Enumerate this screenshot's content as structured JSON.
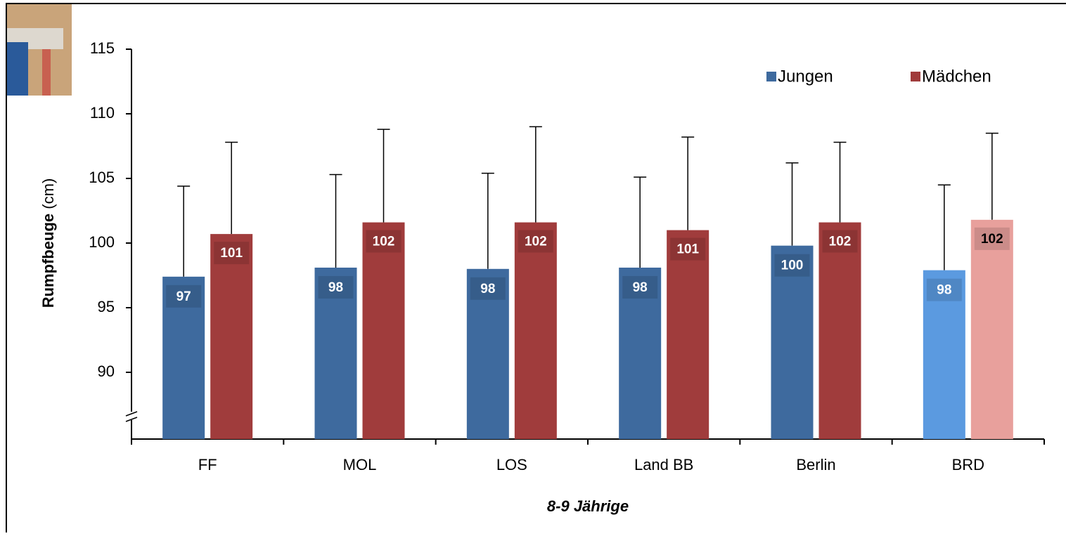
{
  "chart_data": {
    "type": "bar",
    "ylabel": "Rumpfbeuge",
    "yunit": "(cm)",
    "xlabel": "8-9 Jährige",
    "categories": [
      "FF",
      "MOL",
      "LOS",
      "Land BB",
      "Berlin",
      "BRD"
    ],
    "series": [
      {
        "name": "Jungen",
        "color": "#3e6a9e",
        "colors": [
          "#3e6a9e",
          "#3e6a9e",
          "#3e6a9e",
          "#3e6a9e",
          "#3e6a9e",
          "#5b9ae0"
        ],
        "values": [
          97.4,
          98.1,
          98.0,
          98.1,
          99.8,
          97.9
        ],
        "value_labels": [
          "97",
          "98",
          "98",
          "98",
          "100",
          "98"
        ],
        "errors": [
          7.0,
          7.2,
          7.4,
          7.0,
          6.4,
          6.6
        ]
      },
      {
        "name": "Mädchen",
        "color": "#a03c3c",
        "colors": [
          "#a03c3c",
          "#a03c3c",
          "#a03c3c",
          "#a03c3c",
          "#a03c3c",
          "#e8a09c"
        ],
        "values": [
          100.7,
          101.6,
          101.6,
          101.0,
          101.6,
          101.8
        ],
        "value_labels": [
          "101",
          "102",
          "102",
          "101",
          "102",
          "102"
        ],
        "errors": [
          7.1,
          7.2,
          7.4,
          7.2,
          6.2,
          6.7
        ]
      }
    ],
    "ylim": [
      85,
      115
    ],
    "yticks": [
      90,
      95,
      100,
      105,
      110,
      115
    ],
    "axis_break": true
  }
}
